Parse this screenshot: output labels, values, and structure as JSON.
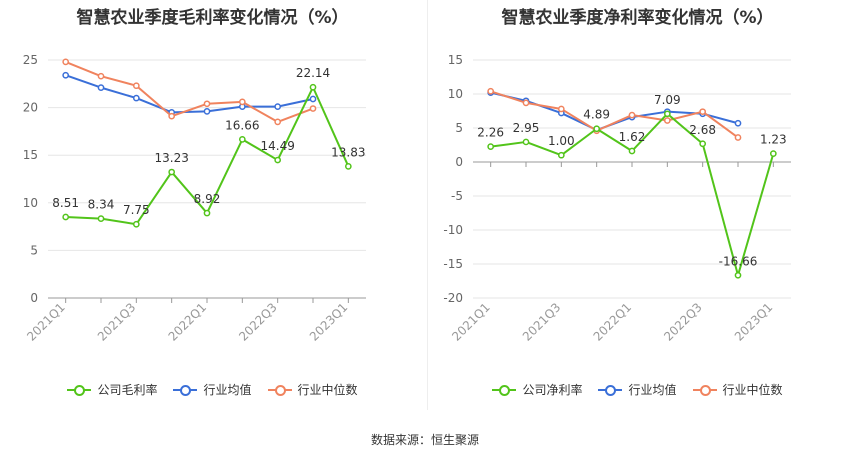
{
  "colors": {
    "company": "#52c41a",
    "industry_avg": "#3a6fd8",
    "industry_median": "#f0835e",
    "grid": "#e6e6e6",
    "axis_text": "#666666"
  },
  "source_label": "数据来源：恒生聚源",
  "chart_data": [
    {
      "type": "line",
      "title": "智慧农业季度毛利率变化情况（%）",
      "xlabel": "",
      "ylabel": "",
      "ylim": [
        0,
        25
      ],
      "yticks": [
        0,
        5,
        10,
        15,
        20,
        25
      ],
      "tick_labels": [
        "2021Q1",
        "2021Q3",
        "2022Q1",
        "2022Q3",
        "2023Q1"
      ],
      "categories": [
        "2021Q1",
        "2021Q2",
        "2021Q3",
        "2021Q4",
        "2022Q1",
        "2022Q2",
        "2022Q3",
        "2022Q4",
        "2023Q1"
      ],
      "grid": true,
      "legend_position": "bottom",
      "series": [
        {
          "name": "公司毛利率",
          "key": "company",
          "labels": true,
          "values": [
            8.51,
            8.34,
            7.75,
            13.23,
            8.92,
            16.66,
            14.49,
            22.14,
            13.83
          ]
        },
        {
          "name": "行业均值",
          "key": "industry_avg",
          "values": [
            23.4,
            22.1,
            21.0,
            19.5,
            19.6,
            20.1,
            20.1,
            20.9,
            null
          ]
        },
        {
          "name": "行业中位数",
          "key": "industry_median",
          "values": [
            24.8,
            23.3,
            22.3,
            19.1,
            20.4,
            20.6,
            18.5,
            19.9,
            null
          ]
        }
      ]
    },
    {
      "type": "line",
      "title": "智慧农业季度净利率变化情况（%）",
      "xlabel": "",
      "ylabel": "",
      "ylim": [
        -20,
        15
      ],
      "yticks": [
        -20,
        -15,
        -10,
        -5,
        0,
        5,
        10,
        15
      ],
      "tick_labels": [
        "2021Q1",
        "2021Q3",
        "2022Q1",
        "2022Q3",
        "2023Q1"
      ],
      "categories": [
        "2021Q1",
        "2021Q2",
        "2021Q3",
        "2021Q4",
        "2022Q1",
        "2022Q2",
        "2022Q3",
        "2022Q4",
        "2023Q1"
      ],
      "grid": true,
      "legend_position": "bottom",
      "series": [
        {
          "name": "公司净利率",
          "key": "company",
          "labels": true,
          "values": [
            2.26,
            2.95,
            1.0,
            4.89,
            1.62,
            7.09,
            2.68,
            -16.66,
            1.23
          ]
        },
        {
          "name": "行业均值",
          "key": "industry_avg",
          "values": [
            10.2,
            9.0,
            7.2,
            4.7,
            6.6,
            7.4,
            7.1,
            5.7,
            null
          ]
        },
        {
          "name": "行业中位数",
          "key": "industry_median",
          "values": [
            10.4,
            8.7,
            7.8,
            4.6,
            6.9,
            6.1,
            7.4,
            3.6,
            null
          ]
        }
      ]
    }
  ]
}
